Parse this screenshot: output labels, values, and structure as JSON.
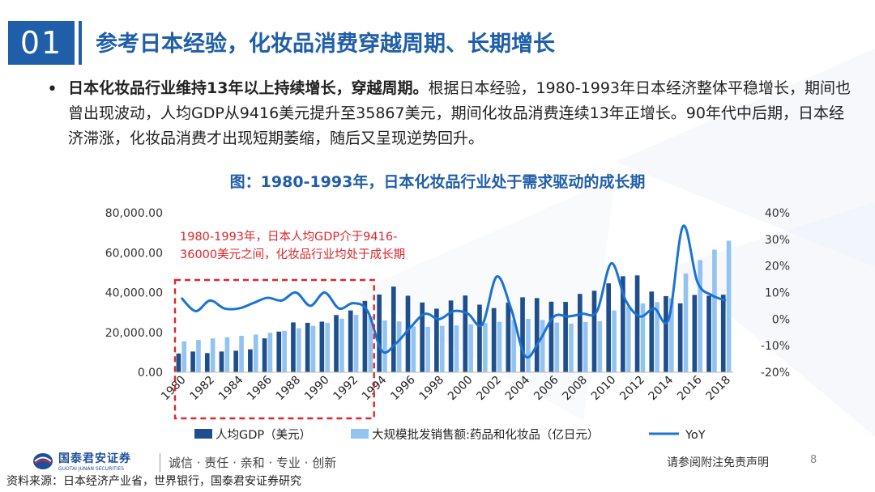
{
  "header": {
    "section_number": "01",
    "title": "参考日本经验，化妆品消费穿越周期、长期增长"
  },
  "bullet": {
    "marker": "•",
    "bold": "日本化妆品行业维持13年以上持续增长，穿越周期。",
    "text": "根据日本经验，1980-1993年日本经济整体平稳增长，期间也曾出现波动，人均GDP从9416美元提升至35867美元，期间化妆品消费连续13年正增长。90年代中后期，日本经济滞涨，化妆品消费才出现短期萎缩，随后又呈现逆势回升。"
  },
  "chart_title": "图：1980-1993年，日本化妆品行业处于需求驱动的成长期",
  "chart_data": {
    "type": "bar+line",
    "title": "图：1980-1993年，日本化妆品行业处于需求驱动的成长期",
    "x": [
      1980,
      1981,
      1982,
      1983,
      1984,
      1985,
      1986,
      1987,
      1988,
      1989,
      1990,
      1991,
      1992,
      1993,
      1994,
      1995,
      1996,
      1997,
      1998,
      1999,
      2000,
      2001,
      2002,
      2003,
      2004,
      2005,
      2006,
      2007,
      2008,
      2009,
      2010,
      2011,
      2012,
      2013,
      2014,
      2015,
      2016,
      2017,
      2018
    ],
    "x_tick_labels": [
      "1980",
      "1982",
      "1984",
      "1986",
      "1988",
      "1990",
      "1992",
      "1994",
      "1996",
      "1998",
      "2000",
      "2002",
      "2004",
      "2006",
      "2008",
      "2010",
      "2012",
      "2014",
      "2016",
      "2018"
    ],
    "left_axis": {
      "min": 0,
      "max": 80000,
      "ticks": [
        "0.00",
        "20,000.00",
        "40,000.00",
        "60,000.00",
        "80,000.00"
      ]
    },
    "right_axis": {
      "min": -0.2,
      "max": 0.4,
      "ticks": [
        "-20%",
        "-10%",
        "0%",
        "10%",
        "20%",
        "30%",
        "40%"
      ]
    },
    "series": [
      {
        "name": "人均GDP（美元）",
        "type": "bar",
        "axis": "left",
        "color": "#1f4e8c",
        "values": [
          9400,
          10400,
          9600,
          10400,
          10800,
          11500,
          17000,
          20400,
          25000,
          24800,
          25400,
          28700,
          31000,
          35800,
          39000,
          43000,
          38400,
          35000,
          31900,
          36000,
          38500,
          33900,
          32200,
          35000,
          37600,
          37200,
          35400,
          35300,
          39300,
          40900,
          44600,
          48200,
          48600,
          40500,
          38200,
          34600,
          38800,
          38400,
          38900
        ]
      },
      {
        "name": "大规模批发销售额:药品和化妆品（亿日元）",
        "type": "bar",
        "axis": "left",
        "color": "#93c4f0",
        "values": [
          15500,
          16200,
          17000,
          17600,
          18300,
          18900,
          19800,
          20800,
          22100,
          23300,
          24800,
          26900,
          28800,
          28000,
          26000,
          25500,
          23000,
          22800,
          23300,
          23500,
          24000,
          24600,
          25300,
          26200,
          26800,
          26200,
          24900,
          24400,
          25200,
          25600,
          31000,
          33000,
          34500,
          35200,
          37200,
          49500,
          56300,
          61500,
          66000
        ]
      },
      {
        "name": "YoY",
        "type": "line",
        "axis": "right",
        "color": "#1a73d1",
        "values": [
          0.08,
          0.03,
          0.07,
          0.04,
          0.04,
          0.06,
          0.08,
          0.07,
          0.1,
          0.05,
          0.1,
          0.04,
          0.06,
          0.03,
          -0.12,
          -0.09,
          -0.03,
          0.02,
          0.0,
          0.03,
          0.02,
          -0.02,
          0.16,
          0.04,
          -0.14,
          -0.08,
          0.01,
          0.01,
          0.02,
          0.03,
          0.21,
          0.07,
          0.01,
          0.04,
          0.0,
          0.35,
          0.14,
          0.09,
          0.07
        ]
      }
    ],
    "annotation": {
      "text_line1": "1980-1993年，日本人均GDP介于9416-",
      "text_line2": "36000美元之间，化妆品行业均处于成长期",
      "range": [
        1980,
        1993
      ]
    },
    "legend_position": "bottom",
    "grid": false
  },
  "legend": [
    {
      "label": "人均GDP（美元）",
      "kind": "box",
      "color": "#1f4e8c"
    },
    {
      "label": "大规模批发销售额:药品和化妆品（亿日元）",
      "kind": "box",
      "color": "#93c4f0"
    },
    {
      "label": "YoY",
      "kind": "line",
      "color": "#1a73d1"
    }
  ],
  "footer": {
    "logo_cn": "国泰君安证券",
    "logo_en": "GUOTAI JUNAN SECURITIES",
    "slogan": "诚信 · 责任 · 亲和 · 专业 · 创新",
    "disclaimer": "请参阅附注免责声明",
    "page_number": "8",
    "source": "资料来源：日本经济产业省，世界银行，国泰君安证券研究"
  },
  "colors": {
    "brand": "#1f5ea8",
    "annotation_red": "#e0262b"
  }
}
